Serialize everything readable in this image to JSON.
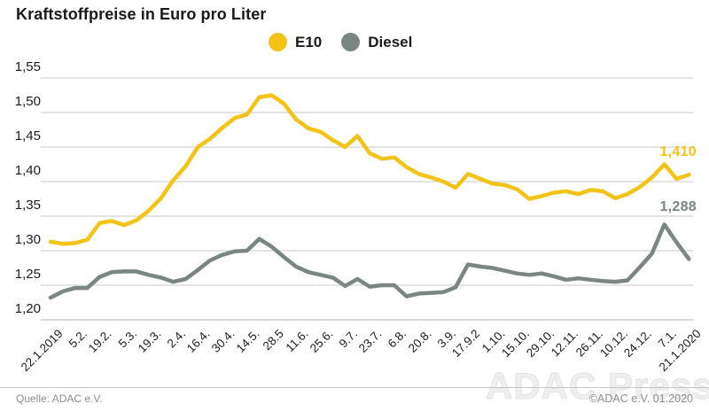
{
  "title": "Kraftstoffpreise in Euro pro Liter",
  "legend": [
    {
      "label": "E10",
      "color": "#f4c318"
    },
    {
      "label": "Diesel",
      "color": "#7a8781"
    }
  ],
  "annotations": {
    "e10_last": "1,410",
    "diesel_last": "1,288"
  },
  "footer": {
    "source": "Quelle: ADAC e.V.",
    "copyright": "©ADAC e.V.  01.2020",
    "watermark": "ADAC Presse"
  },
  "colors": {
    "e10": "#f4c318",
    "diesel": "#7a8781",
    "grid": "#c9c9c9",
    "axis": "#b2b2b2",
    "text": "#1d1d1b"
  },
  "chart_data": {
    "type": "line",
    "title": "Kraftstoffpreise in Euro pro Liter",
    "ylabel": "Euro pro Liter",
    "ylim": [
      1.2,
      1.55
    ],
    "y_tick_step": 0.05,
    "y_tick_labels": [
      "1,55",
      "1,50",
      "1,45",
      "1,40",
      "1,35",
      "1,30",
      "1,25",
      "1,20"
    ],
    "x_tick_labels": [
      "22.1.2019",
      "5.2.",
      "19.2.",
      "5.3.",
      "19.3.",
      "2.4.",
      "16.4.",
      "30.4.",
      "14.5.",
      "28.5",
      "11.6.",
      "25.6.",
      "9.7.",
      "23.7.",
      "6.8.",
      "20.8.",
      "3.9.",
      "17.9.2",
      "1.10.",
      "15.10.",
      "29.10.",
      "12.11.",
      "26.11.",
      "10.12.",
      "24.12.",
      "7.1.",
      "21.1.2020"
    ],
    "points_per_tick": 2,
    "grid": "horizontal",
    "legend_position": "top-center",
    "series": [
      {
        "name": "E10",
        "color": "#f4c318",
        "last_value_label": "1,410",
        "values": [
          1.313,
          1.31,
          1.311,
          1.316,
          1.34,
          1.343,
          1.337,
          1.344,
          1.358,
          1.376,
          1.402,
          1.422,
          1.45,
          1.462,
          1.478,
          1.492,
          1.497,
          1.522,
          1.525,
          1.513,
          1.49,
          1.477,
          1.472,
          1.46,
          1.45,
          1.466,
          1.441,
          1.433,
          1.435,
          1.421,
          1.411,
          1.406,
          1.4,
          1.391,
          1.411,
          1.404,
          1.397,
          1.395,
          1.389,
          1.375,
          1.379,
          1.384,
          1.386,
          1.382,
          1.388,
          1.386,
          1.376,
          1.382,
          1.392,
          1.406,
          1.425,
          1.404,
          1.41
        ]
      },
      {
        "name": "Diesel",
        "color": "#7a8781",
        "last_value_label": "1,288",
        "values": [
          1.232,
          1.241,
          1.246,
          1.246,
          1.262,
          1.269,
          1.27,
          1.27,
          1.265,
          1.261,
          1.255,
          1.259,
          1.272,
          1.286,
          1.294,
          1.299,
          1.3,
          1.317,
          1.306,
          1.291,
          1.277,
          1.269,
          1.265,
          1.261,
          1.249,
          1.259,
          1.248,
          1.25,
          1.25,
          1.234,
          1.238,
          1.239,
          1.24,
          1.247,
          1.28,
          1.277,
          1.275,
          1.271,
          1.267,
          1.265,
          1.267,
          1.263,
          1.258,
          1.26,
          1.258,
          1.256,
          1.255,
          1.257,
          1.276,
          1.296,
          1.338,
          1.312,
          1.288
        ]
      }
    ]
  }
}
